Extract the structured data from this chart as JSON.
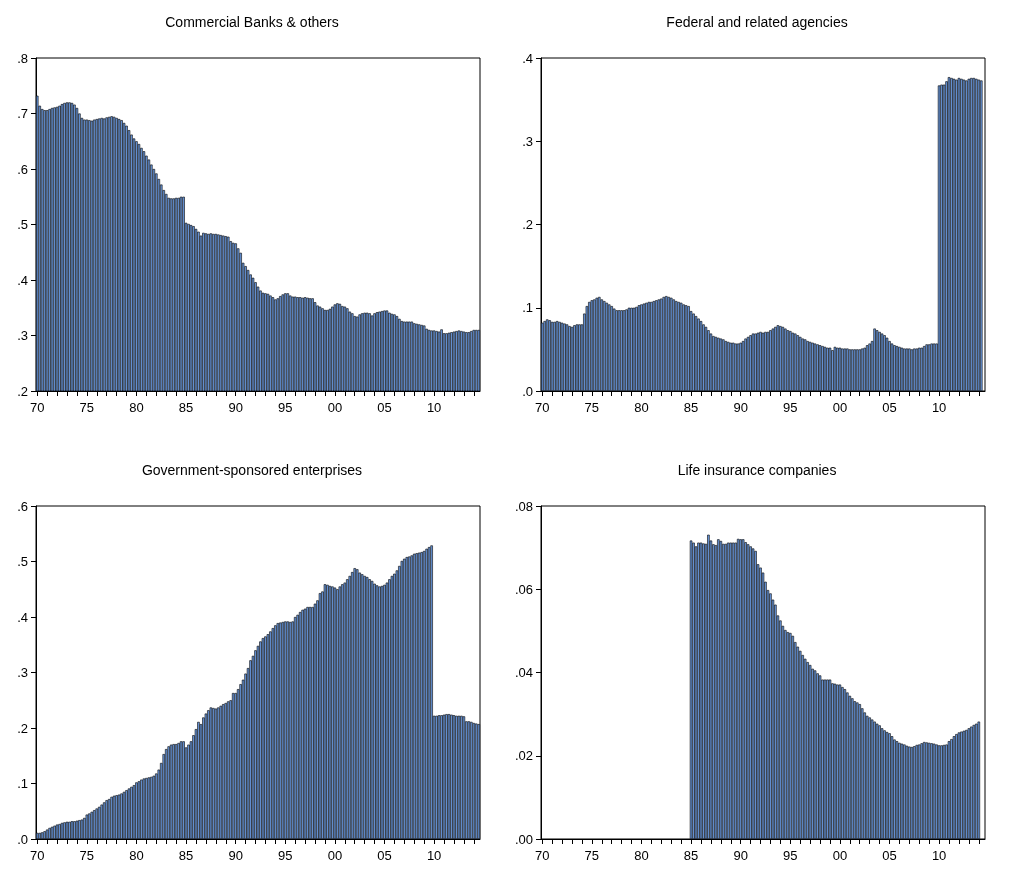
{
  "chart_data": [
    {
      "type": "bar",
      "title": "Commercial Banks & others",
      "categories": [
        "70",
        null,
        null,
        null,
        null,
        null,
        null,
        null,
        null,
        null,
        null,
        null,
        null,
        null,
        null,
        null,
        null,
        null,
        null,
        null,
        "75",
        null,
        null,
        null,
        null,
        null,
        null,
        null,
        null,
        null,
        null,
        null,
        null,
        null,
        null,
        null,
        null,
        null,
        null,
        null,
        "80",
        null,
        null,
        null,
        null,
        null,
        null,
        null,
        null,
        null,
        null,
        null,
        null,
        null,
        null,
        null,
        null,
        null,
        null,
        null,
        "85",
        null,
        null,
        null,
        null,
        null,
        null,
        null,
        null,
        null,
        null,
        null,
        null,
        null,
        null,
        null,
        null,
        null,
        null,
        null,
        "90",
        null,
        null,
        null,
        null,
        null,
        null,
        null,
        null,
        null,
        null,
        null,
        null,
        null,
        null,
        null,
        null,
        null,
        null,
        null,
        "95",
        null,
        null,
        null,
        null,
        null,
        null,
        null,
        null,
        null,
        null,
        null,
        null,
        null,
        null,
        null,
        null,
        null,
        null,
        null,
        "00",
        null,
        null,
        null,
        null,
        null,
        null,
        null,
        null,
        null,
        null,
        null,
        null,
        null,
        null,
        null,
        null,
        null,
        null,
        null,
        "05",
        null,
        null,
        null,
        null,
        null,
        null,
        null,
        null,
        null,
        null,
        null,
        null,
        null,
        null,
        null,
        null,
        null,
        null,
        null,
        "10",
        null,
        null,
        null,
        null,
        null,
        null,
        null,
        null,
        null,
        null,
        null,
        null,
        null,
        null,
        null,
        null,
        null,
        null
      ],
      "series": [
        {
          "color": "#6b9ae0",
          "values": [
            0.732,
            0.714,
            0.708,
            0.706,
            0.706,
            0.708,
            0.71,
            0.711,
            0.712,
            0.714,
            0.717,
            0.719,
            0.72,
            0.72,
            0.719,
            0.716,
            0.71,
            0.7,
            0.692,
            0.689,
            0.689,
            0.688,
            0.687,
            0.689,
            0.69,
            0.691,
            0.692,
            0.691,
            0.693,
            0.694,
            0.695,
            0.694,
            0.692,
            0.69,
            0.688,
            0.683,
            0.678,
            0.67,
            0.662,
            0.655,
            0.65,
            0.645,
            0.638,
            0.632,
            0.624,
            0.617,
            0.608,
            0.6,
            0.592,
            0.582,
            0.572,
            0.562,
            0.555,
            0.548,
            0.547,
            0.547,
            0.548,
            0.548,
            0.55,
            0.55,
            0.503,
            0.501,
            0.499,
            0.497,
            0.492,
            0.487,
            0.48,
            0.485,
            0.484,
            0.483,
            0.484,
            0.483,
            0.483,
            0.482,
            0.481,
            0.48,
            0.479,
            0.478,
            0.47,
            0.467,
            0.466,
            0.457,
            0.449,
            0.431,
            0.425,
            0.418,
            0.41,
            0.404,
            0.396,
            0.388,
            0.381,
            0.377,
            0.376,
            0.375,
            0.372,
            0.369,
            0.365,
            0.367,
            0.371,
            0.374,
            0.376,
            0.376,
            0.372,
            0.37,
            0.37,
            0.369,
            0.369,
            0.368,
            0.369,
            0.368,
            0.367,
            0.367,
            0.36,
            0.354,
            0.352,
            0.349,
            0.346,
            0.346,
            0.348,
            0.352,
            0.356,
            0.358,
            0.357,
            0.353,
            0.352,
            0.349,
            0.343,
            0.34,
            0.335,
            0.334,
            0.338,
            0.34,
            0.341,
            0.341,
            0.34,
            0.336,
            0.34,
            0.342,
            0.343,
            0.344,
            0.345,
            0.345,
            0.341,
            0.339,
            0.338,
            0.335,
            0.33,
            0.326,
            0.325,
            0.325,
            0.325,
            0.325,
            0.322,
            0.321,
            0.32,
            0.319,
            0.318,
            0.312,
            0.31,
            0.309,
            0.309,
            0.308,
            0.307,
            0.311,
            0.304,
            0.304,
            0.305,
            0.306,
            0.307,
            0.308,
            0.309,
            0.308,
            0.307,
            0.306,
            0.306,
            0.308,
            0.31,
            0.31,
            0.31
          ]
        }
      ],
      "ylim": [
        0.2,
        0.8
      ],
      "yticks": [
        {
          "value": 0.2,
          "label": ".2"
        },
        {
          "value": 0.3,
          "label": ".3"
        },
        {
          "value": 0.4,
          "label": ".4"
        },
        {
          "value": 0.5,
          "label": ".5"
        },
        {
          "value": 0.6,
          "label": ".6"
        },
        {
          "value": 0.7,
          "label": ".7"
        },
        {
          "value": 0.8,
          "label": ".8"
        }
      ]
    },
    {
      "type": "bar",
      "title": "Federal and related agencies",
      "categories": [
        "70",
        null,
        null,
        null,
        null,
        null,
        null,
        null,
        null,
        null,
        null,
        null,
        null,
        null,
        null,
        null,
        null,
        null,
        null,
        null,
        "75",
        null,
        null,
        null,
        null,
        null,
        null,
        null,
        null,
        null,
        null,
        null,
        null,
        null,
        null,
        null,
        null,
        null,
        null,
        null,
        "80",
        null,
        null,
        null,
        null,
        null,
        null,
        null,
        null,
        null,
        null,
        null,
        null,
        null,
        null,
        null,
        null,
        null,
        null,
        null,
        "85",
        null,
        null,
        null,
        null,
        null,
        null,
        null,
        null,
        null,
        null,
        null,
        null,
        null,
        null,
        null,
        null,
        null,
        null,
        null,
        "90",
        null,
        null,
        null,
        null,
        null,
        null,
        null,
        null,
        null,
        null,
        null,
        null,
        null,
        null,
        null,
        null,
        null,
        null,
        null,
        "95",
        null,
        null,
        null,
        null,
        null,
        null,
        null,
        null,
        null,
        null,
        null,
        null,
        null,
        null,
        null,
        null,
        null,
        null,
        null,
        "00",
        null,
        null,
        null,
        null,
        null,
        null,
        null,
        null,
        null,
        null,
        null,
        null,
        null,
        null,
        null,
        null,
        null,
        null,
        null,
        "05",
        null,
        null,
        null,
        null,
        null,
        null,
        null,
        null,
        null,
        null,
        null,
        null,
        null,
        null,
        null,
        null,
        null,
        null,
        null,
        "10",
        null,
        null,
        null,
        null,
        null,
        null,
        null,
        null,
        null,
        null,
        null,
        null,
        null,
        null,
        null,
        null,
        null,
        null
      ],
      "series": [
        {
          "color": "#6b9ae0",
          "values": [
            0.082,
            0.084,
            0.086,
            0.085,
            0.083,
            0.083,
            0.084,
            0.083,
            0.082,
            0.081,
            0.08,
            0.078,
            0.077,
            0.079,
            0.08,
            0.08,
            0.08,
            0.093,
            0.102,
            0.107,
            0.109,
            0.11,
            0.112,
            0.113,
            0.11,
            0.108,
            0.106,
            0.104,
            0.102,
            0.099,
            0.097,
            0.097,
            0.097,
            0.097,
            0.098,
            0.1,
            0.1,
            0.1,
            0.101,
            0.103,
            0.104,
            0.105,
            0.106,
            0.107,
            0.107,
            0.108,
            0.109,
            0.11,
            0.111,
            0.113,
            0.114,
            0.113,
            0.112,
            0.11,
            0.108,
            0.107,
            0.106,
            0.104,
            0.103,
            0.102,
            0.096,
            0.093,
            0.09,
            0.087,
            0.084,
            0.08,
            0.077,
            0.073,
            0.069,
            0.066,
            0.065,
            0.064,
            0.063,
            0.062,
            0.06,
            0.059,
            0.058,
            0.058,
            0.057,
            0.057,
            0.058,
            0.06,
            0.063,
            0.065,
            0.067,
            0.069,
            0.069,
            0.07,
            0.071,
            0.07,
            0.071,
            0.071,
            0.073,
            0.075,
            0.077,
            0.079,
            0.078,
            0.077,
            0.075,
            0.073,
            0.072,
            0.07,
            0.069,
            0.067,
            0.065,
            0.063,
            0.062,
            0.06,
            0.059,
            0.058,
            0.057,
            0.056,
            0.055,
            0.054,
            0.053,
            0.052,
            0.052,
            0.049,
            0.053,
            0.052,
            0.052,
            0.051,
            0.051,
            0.051,
            0.05,
            0.05,
            0.05,
            0.05,
            0.05,
            0.051,
            0.052,
            0.055,
            0.057,
            0.06,
            0.075,
            0.073,
            0.071,
            0.069,
            0.067,
            0.064,
            0.06,
            0.057,
            0.055,
            0.054,
            0.053,
            0.052,
            0.051,
            0.051,
            0.051,
            0.05,
            0.051,
            0.051,
            0.052,
            0.052,
            0.054,
            0.056,
            0.056,
            0.057,
            0.057,
            0.057,
            0.367,
            0.368,
            0.368,
            0.372,
            0.377,
            0.376,
            0.375,
            0.374,
            0.376,
            0.375,
            0.374,
            0.373,
            0.375,
            0.376,
            0.376,
            0.375,
            0.374,
            0.373,
            null
          ]
        }
      ],
      "ylim": [
        0,
        0.4
      ],
      "yticks": [
        {
          "value": 0,
          "label": ".0"
        },
        {
          "value": 0.1,
          "label": ".1"
        },
        {
          "value": 0.2,
          "label": ".2"
        },
        {
          "value": 0.3,
          "label": ".3"
        },
        {
          "value": 0.4,
          "label": ".4"
        }
      ]
    },
    {
      "type": "bar",
      "title": "Government-sponsored enterprises",
      "categories": [
        "70",
        null,
        null,
        null,
        null,
        null,
        null,
        null,
        null,
        null,
        null,
        null,
        null,
        null,
        null,
        null,
        null,
        null,
        null,
        null,
        "75",
        null,
        null,
        null,
        null,
        null,
        null,
        null,
        null,
        null,
        null,
        null,
        null,
        null,
        null,
        null,
        null,
        null,
        null,
        null,
        "80",
        null,
        null,
        null,
        null,
        null,
        null,
        null,
        null,
        null,
        null,
        null,
        null,
        null,
        null,
        null,
        null,
        null,
        null,
        null,
        "85",
        null,
        null,
        null,
        null,
        null,
        null,
        null,
        null,
        null,
        null,
        null,
        null,
        null,
        null,
        null,
        null,
        null,
        null,
        null,
        "90",
        null,
        null,
        null,
        null,
        null,
        null,
        null,
        null,
        null,
        null,
        null,
        null,
        null,
        null,
        null,
        null,
        null,
        null,
        null,
        "95",
        null,
        null,
        null,
        null,
        null,
        null,
        null,
        null,
        null,
        null,
        null,
        null,
        null,
        null,
        null,
        null,
        null,
        null,
        null,
        "00",
        null,
        null,
        null,
        null,
        null,
        null,
        null,
        null,
        null,
        null,
        null,
        null,
        null,
        null,
        null,
        null,
        null,
        null,
        null,
        "05",
        null,
        null,
        null,
        null,
        null,
        null,
        null,
        null,
        null,
        null,
        null,
        null,
        null,
        null,
        null,
        null,
        null,
        null,
        null,
        "10",
        null,
        null,
        null,
        null,
        null,
        null,
        null,
        null,
        null,
        null,
        null,
        null,
        null,
        null,
        null,
        null,
        null,
        null
      ],
      "series": [
        {
          "color": "#6b9ae0",
          "values": [
            0.011,
            0.011,
            0.012,
            0.014,
            0.017,
            0.02,
            0.022,
            0.024,
            0.026,
            0.027,
            0.029,
            0.03,
            0.031,
            0.031,
            0.032,
            0.032,
            0.033,
            0.034,
            0.035,
            0.038,
            0.044,
            0.046,
            0.049,
            0.052,
            0.055,
            0.058,
            0.062,
            0.066,
            0.07,
            0.072,
            0.076,
            0.078,
            0.079,
            0.08,
            0.082,
            0.085,
            0.088,
            0.091,
            0.094,
            0.097,
            0.102,
            0.104,
            0.107,
            0.109,
            0.11,
            0.111,
            0.112,
            0.114,
            0.118,
            0.125,
            0.137,
            0.153,
            0.162,
            0.167,
            0.17,
            0.171,
            0.171,
            0.173,
            0.176,
            0.176,
            0.165,
            0.17,
            0.176,
            0.187,
            0.198,
            0.211,
            0.207,
            0.219,
            0.226,
            0.232,
            0.237,
            0.236,
            0.235,
            0.237,
            0.24,
            0.243,
            0.245,
            0.248,
            0.25,
            0.263,
            0.263,
            0.27,
            0.279,
            0.287,
            0.298,
            0.308,
            0.322,
            0.33,
            0.34,
            0.348,
            0.356,
            0.362,
            0.365,
            0.369,
            0.374,
            0.38,
            0.385,
            0.389,
            0.39,
            0.391,
            0.392,
            0.392,
            0.391,
            0.392,
            0.4,
            0.404,
            0.409,
            0.413,
            0.415,
            0.418,
            0.418,
            0.418,
            0.424,
            0.43,
            0.443,
            0.446,
            0.459,
            0.458,
            0.456,
            0.455,
            0.453,
            0.45,
            0.455,
            0.459,
            0.462,
            0.468,
            0.474,
            0.481,
            0.488,
            0.486,
            0.48,
            0.477,
            0.474,
            0.472,
            0.468,
            0.465,
            0.46,
            0.457,
            0.455,
            0.456,
            0.458,
            0.462,
            0.468,
            0.474,
            0.478,
            0.484,
            0.492,
            0.501,
            0.505,
            0.508,
            0.509,
            0.511,
            0.514,
            0.515,
            0.516,
            0.517,
            0.519,
            0.523,
            0.526,
            0.529,
            0.222,
            0.222,
            0.223,
            0.223,
            0.224,
            0.225,
            0.225,
            0.224,
            0.223,
            0.222,
            0.222,
            0.222,
            0.221,
            0.212,
            0.212,
            0.211,
            0.209,
            0.208,
            0.207
          ]
        }
      ],
      "ylim": [
        0,
        0.6
      ],
      "yticks": [
        {
          "value": 0,
          "label": ".0"
        },
        {
          "value": 0.1,
          "label": ".1"
        },
        {
          "value": 0.2,
          "label": ".2"
        },
        {
          "value": 0.3,
          "label": ".3"
        },
        {
          "value": 0.4,
          "label": ".4"
        },
        {
          "value": 0.5,
          "label": ".5"
        },
        {
          "value": 0.6,
          "label": ".6"
        }
      ]
    },
    {
      "type": "bar",
      "title": "Life insurance companies",
      "categories": [
        "70",
        null,
        null,
        null,
        null,
        null,
        null,
        null,
        null,
        null,
        null,
        null,
        null,
        null,
        null,
        null,
        null,
        null,
        null,
        null,
        "75",
        null,
        null,
        null,
        null,
        null,
        null,
        null,
        null,
        null,
        null,
        null,
        null,
        null,
        null,
        null,
        null,
        null,
        null,
        null,
        "80",
        null,
        null,
        null,
        null,
        null,
        null,
        null,
        null,
        null,
        null,
        null,
        null,
        null,
        null,
        null,
        null,
        null,
        null,
        null,
        "85",
        null,
        null,
        null,
        null,
        null,
        null,
        null,
        null,
        null,
        null,
        null,
        null,
        null,
        null,
        null,
        null,
        null,
        null,
        null,
        "90",
        null,
        null,
        null,
        null,
        null,
        null,
        null,
        null,
        null,
        null,
        null,
        null,
        null,
        null,
        null,
        null,
        null,
        null,
        null,
        "95",
        null,
        null,
        null,
        null,
        null,
        null,
        null,
        null,
        null,
        null,
        null,
        null,
        null,
        null,
        null,
        null,
        null,
        null,
        null,
        "00",
        null,
        null,
        null,
        null,
        null,
        null,
        null,
        null,
        null,
        null,
        null,
        null,
        null,
        null,
        null,
        null,
        null,
        null,
        null,
        "05",
        null,
        null,
        null,
        null,
        null,
        null,
        null,
        null,
        null,
        null,
        null,
        null,
        null,
        null,
        null,
        null,
        null,
        null,
        null,
        "10",
        null,
        null,
        null,
        null,
        null,
        null,
        null,
        null,
        null,
        null,
        null,
        null,
        null,
        null,
        null,
        null,
        null,
        null
      ],
      "series": [
        {
          "color": "#6b9ae0",
          "values": [
            null,
            null,
            null,
            null,
            null,
            null,
            null,
            null,
            null,
            null,
            null,
            null,
            null,
            null,
            null,
            null,
            null,
            null,
            null,
            null,
            null,
            null,
            null,
            null,
            null,
            null,
            null,
            null,
            null,
            null,
            null,
            null,
            null,
            null,
            null,
            null,
            null,
            null,
            null,
            null,
            null,
            null,
            null,
            null,
            null,
            null,
            null,
            null,
            null,
            null,
            null,
            null,
            null,
            null,
            null,
            null,
            null,
            null,
            null,
            null,
            0.0717,
            0.0712,
            0.0703,
            0.0712,
            0.0712,
            0.071,
            0.0709,
            0.0731,
            0.0717,
            0.0708,
            0.0706,
            0.072,
            0.0716,
            0.0709,
            0.0709,
            0.0712,
            0.0712,
            0.0712,
            0.0712,
            0.0721,
            0.072,
            0.072,
            0.0713,
            0.0708,
            0.0703,
            0.0698,
            0.0692,
            0.066,
            0.0652,
            0.064,
            0.0618,
            0.0598,
            0.059,
            0.0575,
            0.0563,
            0.0537,
            0.0525,
            0.0512,
            0.0502,
            0.0497,
            0.0495,
            0.0488,
            0.0473,
            0.0462,
            0.0452,
            0.0442,
            0.0433,
            0.0425,
            0.0418,
            0.0409,
            0.0405,
            0.0398,
            0.0393,
            0.0383,
            0.0383,
            0.0383,
            0.0383,
            0.0374,
            0.0373,
            0.0371,
            0.0371,
            0.0365,
            0.036,
            0.0352,
            0.0344,
            0.0338,
            0.0331,
            0.0328,
            0.0324,
            0.0314,
            0.0304,
            0.0296,
            0.0292,
            0.0287,
            0.0282,
            0.0277,
            0.0273,
            0.0266,
            0.0261,
            0.0257,
            0.0254,
            0.0247,
            0.0239,
            0.0235,
            0.0231,
            0.0229,
            0.0227,
            0.0224,
            0.0222,
            0.0221,
            0.0223,
            0.0226,
            0.0227,
            0.023,
            0.0233,
            0.0232,
            0.0231,
            0.023,
            0.0229,
            0.0227,
            0.0225,
            0.0225,
            0.0226,
            0.0227,
            0.0235,
            0.024,
            0.0247,
            0.0252,
            0.0256,
            0.0258,
            0.026,
            0.0262,
            0.0266,
            0.027,
            0.0274,
            0.0277,
            0.0282,
            null,
            null
          ]
        }
      ],
      "ylim": [
        0,
        0.08
      ],
      "yticks": [
        {
          "value": 0,
          "label": ".00"
        },
        {
          "value": 0.02,
          "label": ".02"
        },
        {
          "value": 0.04,
          "label": ".04"
        },
        {
          "value": 0.06,
          "label": ".06"
        },
        {
          "value": 0.08,
          "label": ".08"
        }
      ]
    }
  ]
}
